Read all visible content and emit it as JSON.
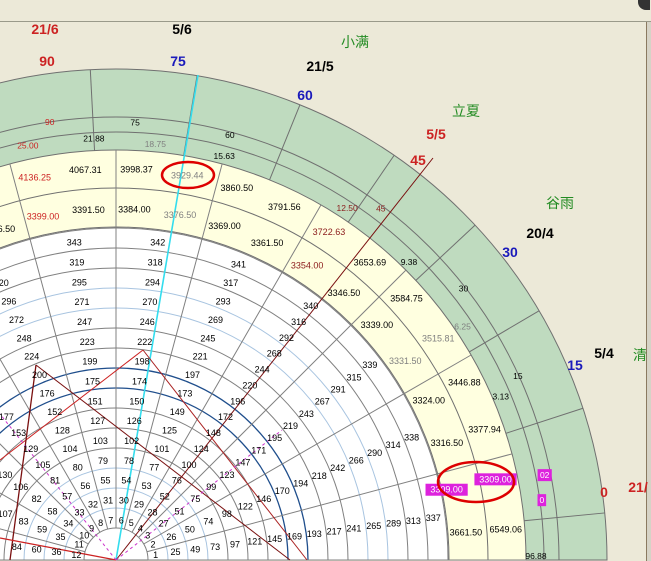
{
  "colors": {
    "background": "#ECE9D8",
    "green_band": "#BFDBBF",
    "yellow_band": "#FFFFE0",
    "grid": "#808080",
    "highlight": "#DD22DD",
    "circle_mark": "#DD0000",
    "cyan_line": "#33DDEE",
    "red_line": "#AA1111"
  },
  "outer_labels": {
    "dates": [
      {
        "text": "21/6",
        "color": "#CC2222"
      },
      {
        "text": "5/6",
        "color": "#000000"
      },
      {
        "text": "21/5",
        "color": "#000000"
      },
      {
        "text": "5/5",
        "color": "#CC2222"
      },
      {
        "text": "20/4",
        "color": "#000000"
      },
      {
        "text": "5/4",
        "color": "#000000"
      },
      {
        "text": "21/",
        "color": "#CC2222"
      }
    ],
    "degrees": [
      {
        "text": "90",
        "color": "#CC2222"
      },
      {
        "text": "75",
        "color": "#1A1ABB"
      },
      {
        "text": "60",
        "color": "#1A1ABB"
      },
      {
        "text": "45",
        "color": "#CC2222"
      },
      {
        "text": "30",
        "color": "#1A1ABB"
      },
      {
        "text": "15",
        "color": "#1A1ABB"
      },
      {
        "text": "0",
        "color": "#CC2222"
      }
    ],
    "solar_terms": [
      "小满",
      "立夏",
      "谷雨",
      "清"
    ]
  },
  "green_rings": {
    "degree_row": [
      {
        "text": "02",
        "style": "highlight"
      },
      {
        "text": "15",
        "style": "normal"
      },
      {
        "text": "30",
        "style": "normal"
      },
      {
        "text": "45",
        "style": "darkred"
      },
      {
        "text": "60",
        "style": "normal"
      },
      {
        "text": "75",
        "style": "normal"
      },
      {
        "text": "90",
        "style": "red"
      }
    ],
    "value_row": [
      {
        "text": "96.88",
        "style": "normal"
      },
      {
        "text": "0",
        "style": "highlight"
      },
      {
        "text": "3.13",
        "style": "normal"
      },
      {
        "text": "6.25",
        "style": "gray"
      },
      {
        "text": "9.38",
        "style": "normal"
      },
      {
        "text": "12.50",
        "style": "darkred"
      },
      {
        "text": "15.63",
        "style": "normal"
      },
      {
        "text": "18.75",
        "style": "gray"
      },
      {
        "text": "21.88",
        "style": "normal"
      },
      {
        "text": "25.00",
        "style": "red"
      }
    ]
  },
  "yellow_rings": {
    "outer": [
      {
        "text": "6549.06",
        "style": "normal"
      },
      {
        "text": "3309.00",
        "style": "highlight"
      },
      {
        "text": "3377.94",
        "style": "normal"
      },
      {
        "text": "3446.88",
        "style": "normal"
      },
      {
        "text": "3515.81",
        "style": "gray"
      },
      {
        "text": "3584.75",
        "style": "normal"
      },
      {
        "text": "3653.69",
        "style": "normal"
      },
      {
        "text": "3722.63",
        "style": "darkred"
      },
      {
        "text": "3791.56",
        "style": "normal"
      },
      {
        "text": "3860.50",
        "style": "normal"
      },
      {
        "text": "3929.44",
        "style": "gray"
      },
      {
        "text": "3998.37",
        "style": "normal"
      },
      {
        "text": "4067.31",
        "style": "normal"
      },
      {
        "text": "4136.25",
        "style": "red"
      }
    ],
    "inner": [
      {
        "text": "3661.50",
        "style": "normal"
      },
      {
        "text": "3309.00",
        "style": "highlight"
      },
      {
        "text": "3316.50",
        "style": "normal"
      },
      {
        "text": "3324.00",
        "style": "normal"
      },
      {
        "text": "3331.50",
        "style": "gray"
      },
      {
        "text": "3339.00",
        "style": "normal"
      },
      {
        "text": "3346.50",
        "style": "normal"
      },
      {
        "text": "3354.00",
        "style": "darkred"
      },
      {
        "text": "3361.50",
        "style": "normal"
      },
      {
        "text": "3369.00",
        "style": "normal"
      },
      {
        "text": "3376.50",
        "style": "gray"
      },
      {
        "text": "3384.00",
        "style": "normal"
      },
      {
        "text": "3391.50",
        "style": "normal"
      },
      {
        "text": "3399.00",
        "style": "red"
      },
      {
        "text": "3406.50",
        "style": "normal"
      }
    ]
  },
  "number_rings": [
    [
      1,
      2,
      3,
      4,
      5,
      6,
      7,
      8,
      9,
      10,
      11,
      12
    ],
    [
      25,
      26,
      27,
      28,
      29,
      30,
      31,
      32,
      33,
      34,
      35,
      36
    ],
    [
      49,
      50,
      51,
      52,
      53,
      54,
      55,
      56,
      57,
      58,
      59,
      60
    ],
    [
      73,
      74,
      75,
      76,
      77,
      78,
      79,
      80,
      81,
      82,
      83,
      84
    ],
    [
      97,
      98,
      99,
      100,
      101,
      102,
      103,
      104,
      105,
      106,
      107
    ],
    [
      121,
      122,
      123,
      124,
      125,
      126,
      127,
      128,
      129,
      130
    ],
    [
      145,
      146,
      147,
      148,
      149,
      150,
      151,
      152,
      153
    ],
    [
      169,
      170,
      171,
      172,
      173,
      174,
      175,
      176,
      177
    ],
    [
      193,
      194,
      195,
      196,
      197,
      198,
      199,
      200
    ],
    [
      217,
      218,
      219,
      220,
      221,
      222,
      223,
      224
    ],
    [
      241,
      242,
      243,
      244,
      245,
      246,
      247,
      248
    ],
    [
      265,
      266,
      267,
      268,
      269,
      270,
      271,
      272
    ],
    [
      289,
      290,
      291,
      292,
      293,
      294,
      295,
      296
    ],
    [
      313,
      314,
      315,
      316,
      317,
      318,
      319,
      320
    ],
    [
      337,
      338,
      339,
      340,
      341,
      342,
      343
    ]
  ],
  "markers": [
    "circle-around-3929.44",
    "circle-around-3309.00"
  ]
}
